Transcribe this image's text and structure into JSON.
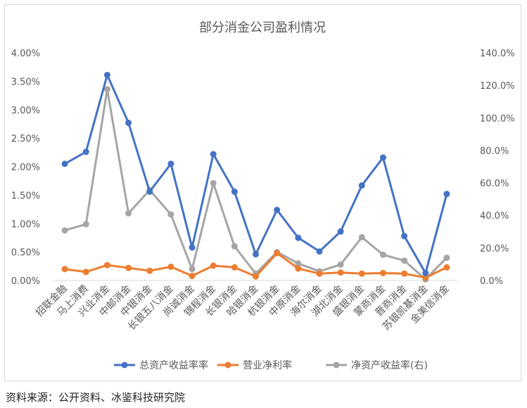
{
  "source_note": "资料来源：公开资料、冰鉴科技研究院",
  "chart_data": {
    "type": "line",
    "title": "部分消金公司盈利情况",
    "categories": [
      "招联金融",
      "马上消费",
      "兴业消金",
      "中邮消金",
      "中银消金",
      "长银五八消金",
      "尚诚消金",
      "锦程消金",
      "长银消金",
      "哈银消金",
      "杭银消金",
      "中原消金",
      "海尔消金",
      "湖北消金",
      "盛银消金",
      "蒙商消金",
      "晋商消金",
      "苏银凯基消金",
      "金美信消金"
    ],
    "left_axis": {
      "ylim": [
        0,
        4.0
      ],
      "ticks": [
        "0.00%",
        "0.50%",
        "1.00%",
        "1.50%",
        "2.00%",
        "2.50%",
        "3.00%",
        "3.50%",
        "4.00%"
      ]
    },
    "right_axis": {
      "ylim": [
        0,
        140
      ],
      "ticks": [
        "0.0%",
        "20.0%",
        "40.0%",
        "60.0%",
        "80.0%",
        "100.0%",
        "120.0%",
        "140.0%"
      ]
    },
    "grid": false,
    "legend_position": "bottom",
    "series": [
      {
        "name": "总资产收益率率",
        "axis": "left",
        "color": "#4472c4",
        "values": [
          2.05,
          2.26,
          3.61,
          2.77,
          1.56,
          2.05,
          0.58,
          2.22,
          1.56,
          0.46,
          1.24,
          0.75,
          0.51,
          0.86,
          1.67,
          2.16,
          0.78,
          0.13,
          1.52
        ]
      },
      {
        "name": "营业净利率",
        "axis": "left",
        "color": "#ed7d31",
        "values": [
          0.2,
          0.15,
          0.27,
          0.22,
          0.17,
          0.24,
          0.08,
          0.26,
          0.23,
          0.07,
          0.48,
          0.21,
          0.12,
          0.14,
          0.12,
          0.13,
          0.12,
          0.05,
          0.23
        ]
      },
      {
        "name": "净资产收益率(右)",
        "axis": "right",
        "color": "#a5a5a5",
        "values": [
          30.8,
          34.6,
          117.6,
          41.3,
          55.6,
          40.6,
          7.0,
          59.8,
          21.0,
          4.2,
          17.5,
          10.5,
          5.6,
          9.8,
          26.6,
          15.8,
          12.2,
          0.7,
          14.0
        ]
      }
    ]
  }
}
